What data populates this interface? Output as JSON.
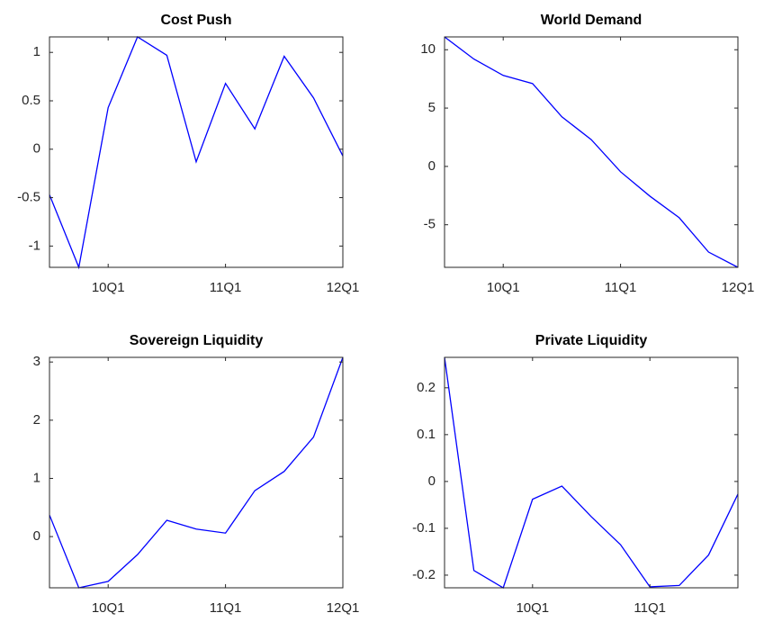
{
  "chart_data": [
    {
      "type": "line",
      "title": "Cost Push",
      "categories": [
        null,
        null,
        "10Q1",
        null,
        null,
        null,
        "11Q1",
        null,
        null,
        null,
        "12Q1"
      ],
      "values": [
        -0.47,
        -1.22,
        0.43,
        1.16,
        0.97,
        -0.13,
        0.68,
        0.21,
        0.96,
        0.53,
        -0.07
      ],
      "color": "#0000ff",
      "ylim": [
        -1.22,
        1.16
      ],
      "yticks": [
        -1,
        -0.5,
        0,
        0.5,
        1
      ]
    },
    {
      "type": "line",
      "title": "World Demand",
      "categories": [
        null,
        null,
        "10Q1",
        null,
        null,
        null,
        "11Q1",
        null,
        null,
        null,
        "12Q1"
      ],
      "values": [
        11.1,
        9.2,
        7.8,
        7.1,
        4.25,
        2.3,
        -0.46,
        -2.55,
        -4.4,
        -7.34,
        -8.65
      ],
      "color": "#0000ff",
      "ylim": [
        -8.65,
        11.1
      ],
      "yticks": [
        -5,
        0,
        5,
        10
      ]
    },
    {
      "type": "line",
      "title": "Sovereign Liquidity",
      "categories": [
        null,
        null,
        "10Q1",
        null,
        null,
        null,
        "11Q1",
        null,
        null,
        null,
        "12Q1"
      ],
      "values": [
        0.37,
        -0.88,
        -0.77,
        -0.31,
        0.28,
        0.13,
        0.06,
        0.79,
        1.12,
        1.71,
        3.08
      ],
      "color": "#0000ff",
      "ylim": [
        -0.88,
        3.08
      ],
      "yticks": [
        0,
        1,
        2,
        3
      ]
    },
    {
      "type": "line",
      "title": "Private Liquidity",
      "categories": [
        null,
        null,
        null,
        "10Q1",
        null,
        null,
        null,
        "11Q1",
        null,
        null,
        null
      ],
      "values": [
        0.265,
        -0.19,
        -0.227,
        -0.038,
        -0.01,
        -0.075,
        -0.135,
        -0.225,
        -0.222,
        -0.157,
        -0.027
      ],
      "color": "#0000ff",
      "ylim": [
        -0.227,
        0.265
      ],
      "yticks": [
        -0.2,
        -0.1,
        0,
        0.1,
        0.2
      ]
    }
  ]
}
